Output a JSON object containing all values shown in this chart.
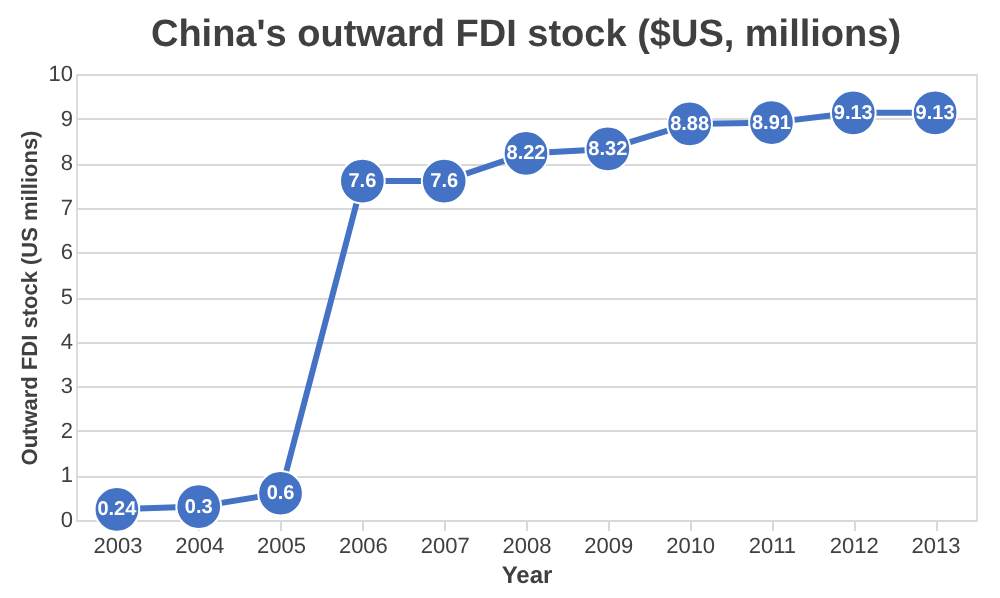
{
  "chart_data": {
    "type": "line",
    "title": "China's outward FDI stock ($US, millions)",
    "xlabel": "Year",
    "ylabel": "Outward FDI stock (US millions)",
    "categories": [
      "2003",
      "2004",
      "2005",
      "2006",
      "2007",
      "2008",
      "2009",
      "2010",
      "2011",
      "2012",
      "2013"
    ],
    "series": [
      {
        "color": "#4472c4",
        "values": [
          0.24,
          0.3,
          0.6,
          7.6,
          7.6,
          8.22,
          8.32,
          8.88,
          8.91,
          9.13,
          9.13
        ]
      }
    ],
    "ylim": [
      0,
      10
    ],
    "yticks": [
      0,
      1,
      2,
      3,
      4,
      5,
      6,
      7,
      8,
      9,
      10
    ],
    "grid": "y",
    "marker": "circle",
    "line_style": "solid",
    "data_labels": true
  }
}
